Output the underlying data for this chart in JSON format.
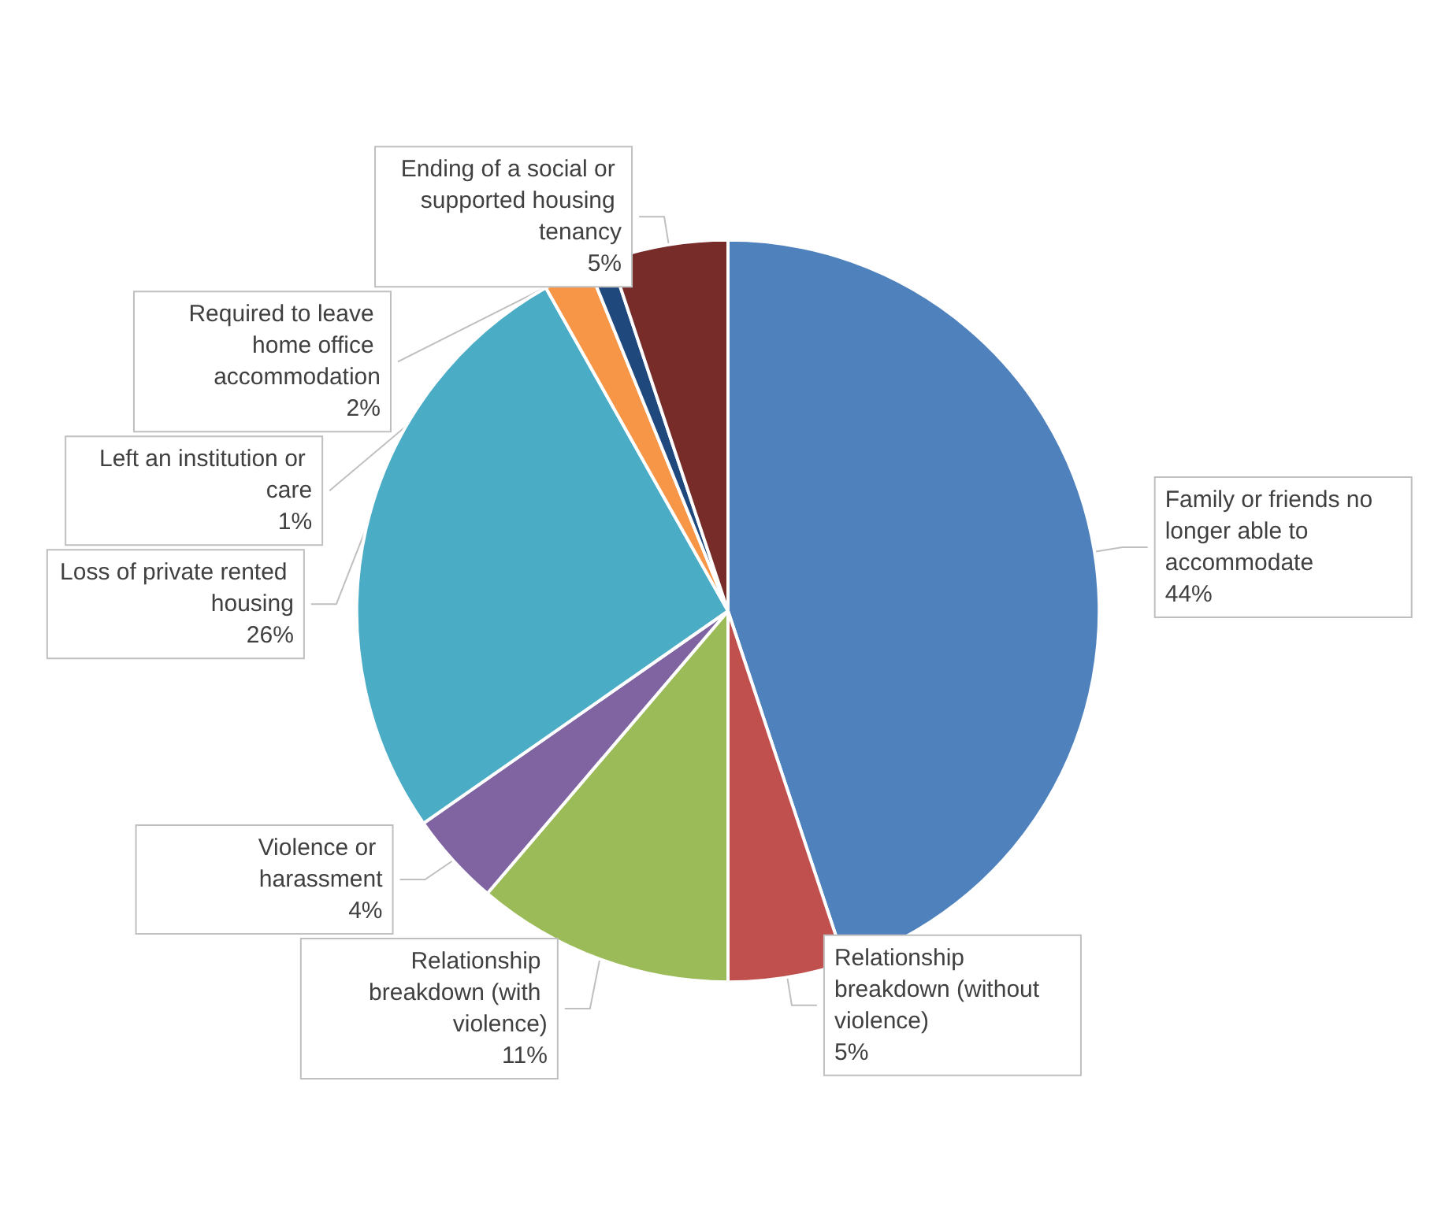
{
  "chart_data": {
    "type": "pie",
    "categories": [
      "Family or friends no longer able to accommodate",
      "Relationship breakdown (without violence)",
      "Relationship breakdown (with violence)",
      "Violence or harassment",
      "Loss of private rented housing",
      "Required to leave home office accommodation",
      "Left an institution or care",
      "Ending of a social or supported housing tenancy"
    ],
    "values": [
      44,
      5,
      11,
      4,
      26,
      2,
      1,
      5
    ],
    "value_labels": [
      "44%",
      "5%",
      "11%",
      "4%",
      "26%",
      "2%",
      "1%",
      "5%"
    ],
    "colors": [
      "#4f81bd",
      "#c0504d",
      "#9bbb59",
      "#8064a2",
      "#4bacc6",
      "#f79646",
      "#1f497d",
      "#772c2a"
    ],
    "legend": false
  }
}
